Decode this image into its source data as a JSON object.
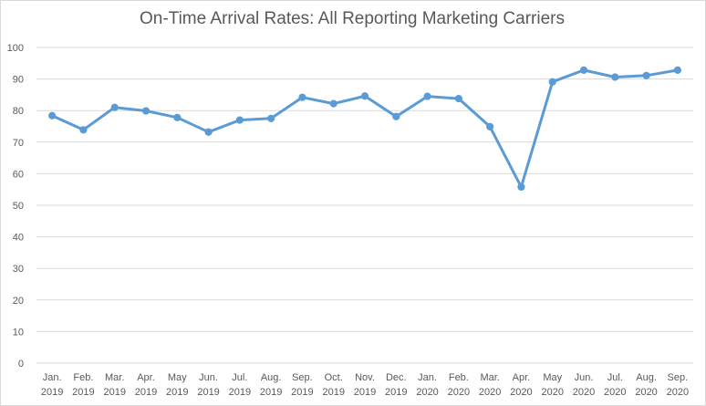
{
  "chart_data": {
    "type": "line",
    "title": "On-Time Arrival Rates: All Reporting Marketing Carriers",
    "xlabel": "",
    "ylabel": "",
    "ylim": [
      0,
      100
    ],
    "yticks": [
      "0",
      "10",
      "20",
      "30",
      "40",
      "50",
      "60",
      "70",
      "80",
      "90",
      "100"
    ],
    "grid": true,
    "legend": "none",
    "categories": [
      [
        "Jan.",
        "2019"
      ],
      [
        "Feb.",
        "2019"
      ],
      [
        "Mar.",
        "2019"
      ],
      [
        "Apr.",
        "2019"
      ],
      [
        "May",
        "2019"
      ],
      [
        "Jun.",
        "2019"
      ],
      [
        "Jul.",
        "2019"
      ],
      [
        "Aug.",
        "2019"
      ],
      [
        "Sep.",
        "2019"
      ],
      [
        "Oct.",
        "2019"
      ],
      [
        "Nov.",
        "2019"
      ],
      [
        "Dec.",
        "2019"
      ],
      [
        "Jan.",
        "2020"
      ],
      [
        "Feb.",
        "2020"
      ],
      [
        "Mar.",
        "2020"
      ],
      [
        "Apr.",
        "2020"
      ],
      [
        "May",
        "2020"
      ],
      [
        "Jun.",
        "2020"
      ],
      [
        "Jul.",
        "2020"
      ],
      [
        "Aug.",
        "2020"
      ],
      [
        "Sep.",
        "2020"
      ]
    ],
    "series": [
      {
        "values": [
          78.4,
          73.9,
          81.0,
          79.9,
          77.8,
          73.2,
          77.0,
          77.5,
          84.2,
          82.2,
          84.6,
          78.1,
          84.5,
          83.8,
          74.9,
          55.8,
          89.1,
          92.8,
          90.6,
          91.1,
          92.8
        ],
        "color": "#5B9BD5"
      }
    ]
  }
}
